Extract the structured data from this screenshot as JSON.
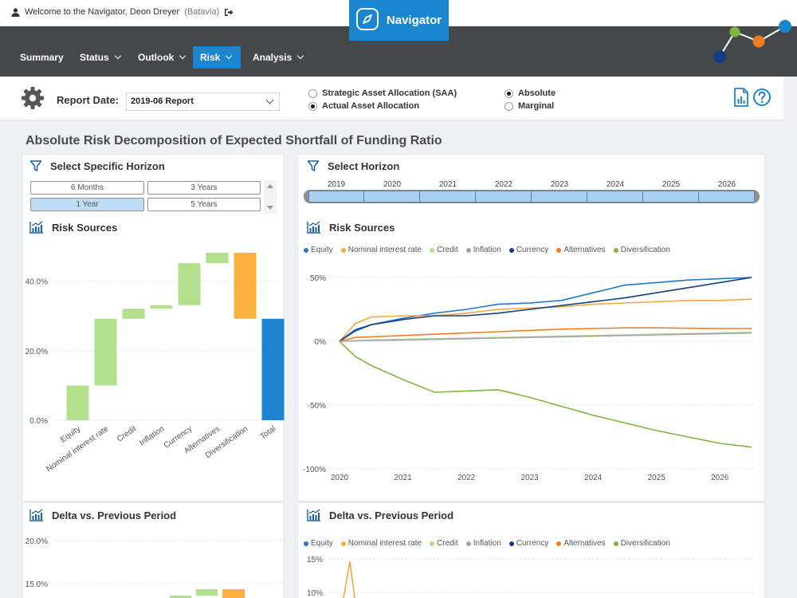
{
  "header": {
    "welcome_text": "Welcome to the Navigator, Deon Dreyer",
    "welcome_org": "(Batavia)",
    "brand": "Navigator"
  },
  "nav": {
    "items": [
      {
        "label": "Summary",
        "dropdown": false,
        "active": false
      },
      {
        "label": "Status",
        "dropdown": true,
        "active": false
      },
      {
        "label": "Outlook",
        "dropdown": true,
        "active": false
      },
      {
        "label": "Risk",
        "dropdown": true,
        "active": true
      },
      {
        "label": "Analysis",
        "dropdown": true,
        "active": false
      }
    ]
  },
  "controls": {
    "report_date_label": "Report Date:",
    "report_date_value": "2019-06 Report",
    "allocation_options": [
      {
        "label": "Strategic Asset Allocation (SAA)",
        "selected": false
      },
      {
        "label": "Actual Asset Allocation",
        "selected": true
      }
    ],
    "mode_options": [
      {
        "label": "Absolute",
        "selected": true
      },
      {
        "label": "Marginal",
        "selected": false
      }
    ]
  },
  "page_title": "Absolute Risk Decomposition of Expected Shortfall of Funding Ratio",
  "specific_horizon": {
    "title": "Select Specific Horizon",
    "options": [
      {
        "label": "6 Months",
        "selected": false
      },
      {
        "label": "3 Years",
        "selected": false
      },
      {
        "label": "1 Year",
        "selected": true
      },
      {
        "label": "5 Years",
        "selected": false
      }
    ]
  },
  "horizon": {
    "title": "Select Horizon",
    "years": [
      "2019",
      "2020",
      "2021",
      "2022",
      "2023",
      "2024",
      "2025",
      "2026"
    ]
  },
  "panels": {
    "risk_sources_left": "Risk Sources",
    "risk_sources_right": "Risk Sources",
    "delta_left": "Delta vs. Previous Period",
    "delta_right": "Delta vs. Previous Period"
  },
  "colors": {
    "brand_blue": "#1a86d0",
    "navbar_bg": "#46474a",
    "series": {
      "Equity": "#1f78c8",
      "Nominal interest rate": "#f7a941",
      "Credit": "#b0e08a",
      "Inflation": "#a0a4a8",
      "Currency": "#133e85",
      "Alternatives": "#f37c21",
      "Diversification": "#7db73d"
    }
  },
  "chart_data": [
    {
      "type": "bar",
      "title": "Risk Sources",
      "subtype": "waterfall",
      "categories": [
        "Equity",
        "Nominal interest rate",
        "Credit",
        "Inflation",
        "Currency",
        "Alternatives",
        "Diversification",
        "Total"
      ],
      "segments": [
        {
          "category": "Equity",
          "start": 0,
          "end": 10
        },
        {
          "category": "Nominal interest rate",
          "start": 10,
          "end": 29.2
        },
        {
          "category": "Credit",
          "start": 29.2,
          "end": 32.1
        },
        {
          "category": "Inflation",
          "start": 32.1,
          "end": 33.1
        },
        {
          "category": "Currency",
          "start": 33.1,
          "end": 45.2
        },
        {
          "category": "Alternatives",
          "start": 45.2,
          "end": 48.2
        },
        {
          "category": "Diversification",
          "start": 48.2,
          "end": 29.2
        },
        {
          "category": "Total",
          "start": 0,
          "end": 29.2
        }
      ],
      "bar_colors": {
        "increase": "#b3e08d",
        "decrease": "#fbb040",
        "total": "#1f84cf"
      },
      "yticks": [
        "0.0%",
        "20.0%",
        "40.0%"
      ],
      "ylim": [
        0,
        48.2
      ]
    },
    {
      "type": "line",
      "title": "Risk Sources",
      "x": [
        2020,
        2020.25,
        2020.5,
        2021,
        2021.5,
        2022,
        2022.5,
        2023,
        2023.5,
        2024,
        2024.5,
        2025,
        2025.5,
        2026,
        2026.5
      ],
      "xticks": [
        "2020",
        "2021",
        "2022",
        "2023",
        "2024",
        "2025",
        "2026"
      ],
      "yticks": [
        "50%",
        "0%",
        "-50%",
        "-100%"
      ],
      "ylim": [
        -100,
        50
      ],
      "series": [
        {
          "name": "Equity",
          "values": [
            0,
            8,
            13,
            18,
            22,
            25,
            29,
            30,
            32,
            38,
            44,
            46,
            48,
            49,
            50
          ]
        },
        {
          "name": "Nominal interest rate",
          "values": [
            0,
            14,
            19,
            20,
            20,
            22,
            25,
            26,
            27,
            29,
            30,
            31,
            32,
            32,
            33
          ]
        },
        {
          "name": "Credit",
          "values": [
            0,
            0.5,
            1,
            1.5,
            2,
            2.5,
            3,
            3.5,
            4,
            4.5,
            5,
            5.5,
            6,
            6.5,
            7
          ]
        },
        {
          "name": "Inflation",
          "values": [
            0,
            0.3,
            0.7,
            1,
            1.5,
            2,
            2.5,
            3,
            3.5,
            4,
            4.5,
            5,
            5.5,
            6,
            6.5
          ]
        },
        {
          "name": "Currency",
          "values": [
            0,
            9,
            13,
            17,
            20,
            20,
            22,
            25,
            28,
            31,
            34,
            38,
            42,
            46,
            50
          ]
        },
        {
          "name": "Alternatives",
          "values": [
            0,
            3,
            3.5,
            4.5,
            5.5,
            6.5,
            7.5,
            8.5,
            9.5,
            10,
            10.5,
            10.5,
            10.2,
            10,
            10
          ]
        },
        {
          "name": "Diversification",
          "values": [
            0,
            -12,
            -19,
            -30,
            -40,
            -39,
            -38,
            -44,
            -51,
            -58,
            -64,
            -70,
            -75,
            -80,
            -83
          ]
        }
      ]
    },
    {
      "type": "bar",
      "title": "Delta vs. Previous Period",
      "subtype": "waterfall",
      "yticks": [
        "15.0%",
        "20.0%"
      ],
      "partial": true
    },
    {
      "type": "line",
      "title": "Delta vs. Previous Period",
      "yticks": [
        "15%",
        "10%"
      ],
      "partial": true
    }
  ],
  "icons": {
    "user": "user-icon",
    "logout": "logout-icon",
    "compass": "compass-icon",
    "gear": "gear-icon",
    "report": "report-icon",
    "help": "help-icon",
    "filter": "filter-icon",
    "chart": "chart-icon"
  }
}
